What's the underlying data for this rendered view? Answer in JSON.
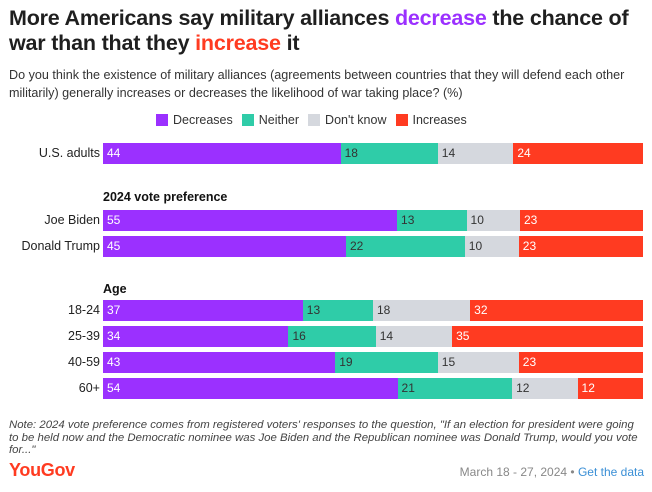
{
  "title": {
    "part1": "More Americans say military alliances ",
    "highlight1": "decrease",
    "part2": " the chance of war than that they ",
    "highlight2": "increase",
    "part3": " it"
  },
  "subtitle": "Do you think the existence of military alliances (agreements between countries that they will defend each other militarily) generally increases or decreases the likelihood of war taking place? (%)",
  "colors": {
    "Decreases": "#9b30ff",
    "Neither": "#2fcca8",
    "Don't know": "#d5d8de",
    "Increases": "#ff3b21"
  },
  "chart_data": {
    "type": "bar",
    "orientation": "horizontal",
    "stacked": true,
    "series_names": [
      "Decreases",
      "Neither",
      "Don't know",
      "Increases"
    ],
    "sections": [
      {
        "heading": "",
        "rows": [
          {
            "label": "U.S. adults",
            "values": [
              44,
              18,
              14,
              24
            ]
          }
        ]
      },
      {
        "heading": "2024 vote preference",
        "rows": [
          {
            "label": "Joe Biden",
            "values": [
              55,
              13,
              10,
              23
            ]
          },
          {
            "label": "Donald Trump",
            "values": [
              45,
              22,
              10,
              23
            ]
          }
        ]
      },
      {
        "heading": "Age",
        "rows": [
          {
            "label": "18-24",
            "values": [
              37,
              13,
              18,
              32
            ]
          },
          {
            "label": "25-39",
            "values": [
              34,
              16,
              14,
              35
            ]
          },
          {
            "label": "40-59",
            "values": [
              43,
              19,
              15,
              23
            ]
          },
          {
            "label": "60+",
            "values": [
              54,
              21,
              12,
              12
            ]
          }
        ]
      }
    ]
  },
  "note": "Note: 2024 vote preference comes from registered voters' responses to the question, \"If an election for president were going to be held now and the Democratic nominee was Joe Biden and the Republican nominee was Donald Trump, would you vote for...\"",
  "logo": "YouGov",
  "footer": {
    "date": "March 18 - 27, 2024",
    "separator": " • ",
    "link": "Get the data"
  }
}
